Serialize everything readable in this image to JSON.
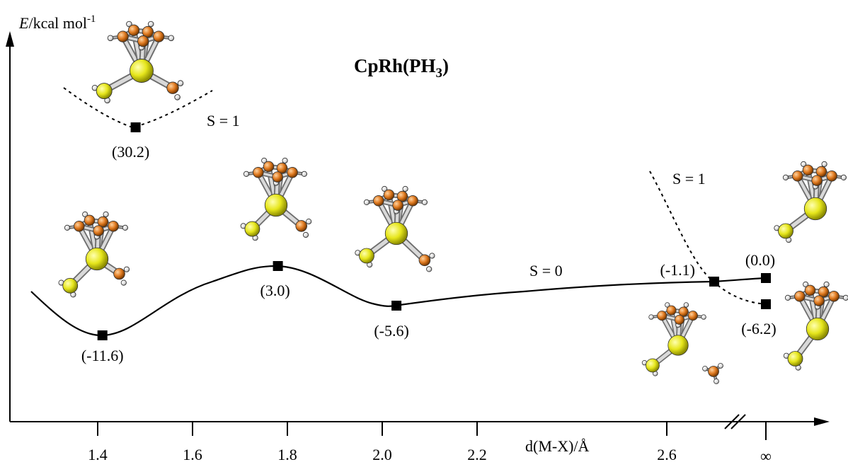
{
  "chart_data": {
    "type": "line",
    "title": "CpRh(PH",
    "title_sub": "3",
    "title_end": ")",
    "ylabel_italic": "E",
    "ylabel_rest": "/kcal mol",
    "ylabel_sup": "-1",
    "xlabel": "d(M-X)/Å",
    "xticks": [
      "1.4",
      "1.6",
      "1.8",
      "2.0",
      "2.2",
      "2.6",
      "∞"
    ],
    "grid": false,
    "series": [
      {
        "spin": "S = 0",
        "style": "solid",
        "points": [
          {
            "x": "1.41",
            "y": -11.6,
            "label": "(-11.6)"
          },
          {
            "x": "1.78",
            "y": 3.0,
            "label": "(3.0)"
          },
          {
            "x": "2.03",
            "y": -5.6,
            "label": "(-5.6)"
          },
          {
            "x": "2.7",
            "y": -1.1,
            "label": "(-1.1)"
          },
          {
            "x": "∞",
            "y": 0.0,
            "label": "(0.0)"
          }
        ]
      },
      {
        "spin": "S = 1",
        "style": "dashed",
        "points": [
          {
            "x": "1.48",
            "y": 30.2,
            "label": "(30.2)"
          }
        ]
      },
      {
        "spin": "S = 1",
        "style": "dashed",
        "points": [
          {
            "x": "∞",
            "y": -6.2,
            "label": "(-6.2)"
          }
        ]
      }
    ],
    "state_labels": [
      "S = 1",
      "S = 0",
      "S = 1"
    ]
  }
}
